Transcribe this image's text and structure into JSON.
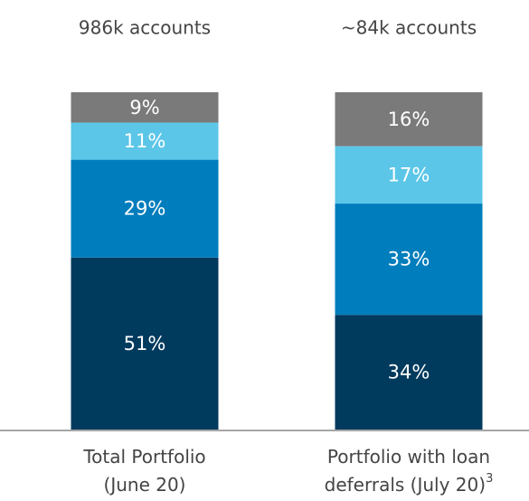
{
  "chart_data": {
    "type": "stacked_bar",
    "annotations": [
      "986k accounts",
      "~84k accounts"
    ],
    "categories": [
      [
        "Total Portfolio",
        "(June 20)"
      ],
      [
        "Portfolio with loan",
        "deferrals (July 20)"
      ]
    ],
    "category_notes": [
      null,
      "3"
    ],
    "ylim": [
      0,
      100
    ],
    "series": [
      {
        "color": "#003a5d",
        "values": [
          51,
          34
        ],
        "value_labels": [
          "51%",
          "34%"
        ]
      },
      {
        "color": "#007dbd",
        "values": [
          29,
          33
        ],
        "value_labels": [
          "29%",
          "33%"
        ]
      },
      {
        "color": "#5bc6e8",
        "values": [
          11,
          17
        ],
        "value_labels": [
          "11%",
          "17%"
        ]
      },
      {
        "color": "#7a7a7a",
        "values": [
          9,
          16
        ],
        "value_labels": [
          "9%",
          "16%"
        ]
      }
    ]
  }
}
